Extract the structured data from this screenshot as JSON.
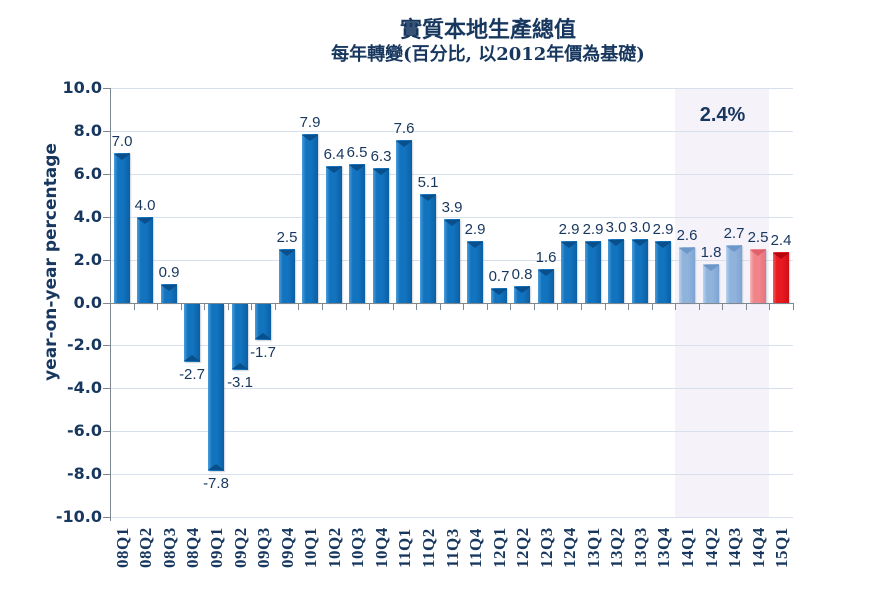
{
  "header": {
    "title": "實質本地生產總值",
    "subtitle": "每年轉變(百分比, 以2012年價為基礎)"
  },
  "annotation": {
    "latest_value": "2.4%"
  },
  "colors": {
    "text_navy": "#17375E",
    "gridline": "#D7E0EC",
    "axis_line": "#7E8890",
    "highlight_band": "#F5F2FA",
    "bars": {
      "blue": {
        "edge": "#4D9DDC",
        "main": "#1273BE",
        "dark": "#0B5FA4",
        "notch": "#094F8C"
      },
      "lightblue": {
        "edge": "#BAD3EE",
        "main": "#8FB3DB",
        "dark": "#7FA4D2",
        "notch": "#6E97C9"
      },
      "pink": {
        "edge": "#F8B7B9",
        "main": "#F08489",
        "dark": "#E6747C",
        "notch": "#DE626B"
      },
      "red": {
        "edge": "#F6595E",
        "main": "#E81920",
        "dark": "#CE0E16",
        "notch": "#B4060F"
      }
    }
  },
  "chart_data": {
    "type": "bar",
    "title": "實質本地生產總值",
    "subtitle": "每年轉變(百分比, 以2012年價為基礎)",
    "ylabel": "year-on-year percentage",
    "ylim": [
      -10,
      10
    ],
    "ytick_step": 2,
    "grid": true,
    "legend_position": "none",
    "categories": [
      "08Q1",
      "08Q2",
      "08Q3",
      "08Q4",
      "09Q1",
      "09Q2",
      "09Q3",
      "09Q4",
      "10Q1",
      "10Q2",
      "10Q3",
      "10Q4",
      "11Q1",
      "11Q2",
      "11Q3",
      "11Q4",
      "12Q1",
      "12Q2",
      "12Q3",
      "12Q4",
      "13Q1",
      "13Q2",
      "13Q3",
      "13Q4",
      "14Q1",
      "14Q2",
      "14Q3",
      "14Q4",
      "15Q1"
    ],
    "values": [
      7.0,
      4.0,
      0.9,
      -2.7,
      -7.8,
      -3.1,
      -1.7,
      2.5,
      7.9,
      6.4,
      6.5,
      6.3,
      7.6,
      5.1,
      3.9,
      2.9,
      0.7,
      0.8,
      1.6,
      2.9,
      2.9,
      3.0,
      3.0,
      2.9,
      2.6,
      1.8,
      2.7,
      2.5,
      2.4
    ],
    "bar_colors": [
      "blue",
      "blue",
      "blue",
      "blue",
      "blue",
      "blue",
      "blue",
      "blue",
      "blue",
      "blue",
      "blue",
      "blue",
      "blue",
      "blue",
      "blue",
      "blue",
      "blue",
      "blue",
      "blue",
      "blue",
      "blue",
      "blue",
      "blue",
      "blue",
      "lightblue",
      "lightblue",
      "lightblue",
      "pink",
      "red"
    ],
    "highlight_band": {
      "from": "14Q1",
      "to": "14Q4"
    },
    "annotation": {
      "text": "2.4%",
      "over": "2014 highlight band"
    }
  }
}
